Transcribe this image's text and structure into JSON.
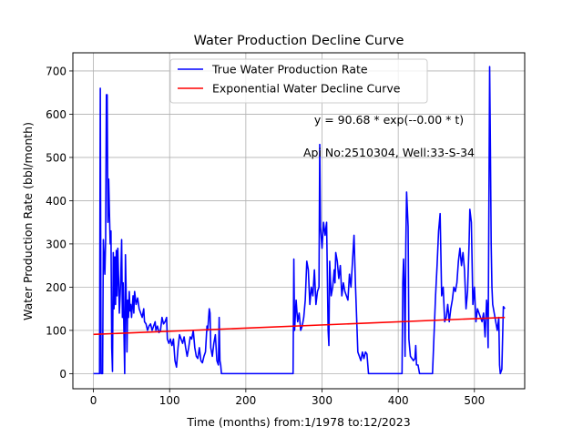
{
  "chart_data": {
    "type": "line",
    "title": "Water Production Decline Curve",
    "xlabel": "Time (months) from:1/1978 to:12/2023",
    "ylabel": "Water Production Rate (bbl/month)",
    "xlim": [
      -27,
      566
    ],
    "ylim": [
      -35,
      742
    ],
    "grid": true,
    "legend_position": "top-center",
    "x_ticks": [
      0,
      100,
      200,
      300,
      400,
      500
    ],
    "y_ticks": [
      0,
      100,
      200,
      300,
      400,
      500,
      600,
      700
    ],
    "annotations": [
      {
        "text": "y = 90.68 * exp(--0.00 * t)",
        "x": 380,
        "y": 580
      },
      {
        "text": "Api No:2510304, Well:33-S-34",
        "x": 380,
        "y": 505
      }
    ],
    "series": [
      {
        "name": "True Water Production Rate",
        "color": "#0000ff",
        "points": [
          [
            0,
            0
          ],
          [
            8,
            0
          ],
          [
            9,
            660
          ],
          [
            10,
            0
          ],
          [
            12,
            0
          ],
          [
            13,
            310
          ],
          [
            15,
            230
          ],
          [
            16,
            310
          ],
          [
            17,
            645
          ],
          [
            18,
            645
          ],
          [
            19,
            350
          ],
          [
            20,
            450
          ],
          [
            21,
            370
          ],
          [
            22,
            300
          ],
          [
            23,
            330
          ],
          [
            24,
            60
          ],
          [
            25,
            5
          ],
          [
            26,
            280
          ],
          [
            27,
            150
          ],
          [
            28,
            270
          ],
          [
            29,
            160
          ],
          [
            30,
            285
          ],
          [
            31,
            180
          ],
          [
            32,
            290
          ],
          [
            33,
            220
          ],
          [
            34,
            140
          ],
          [
            35,
            180
          ],
          [
            36,
            230
          ],
          [
            37,
            310
          ],
          [
            38,
            130
          ],
          [
            39,
            210
          ],
          [
            40,
            100
          ],
          [
            41,
            0
          ],
          [
            42,
            275
          ],
          [
            43,
            180
          ],
          [
            44,
            50
          ],
          [
            45,
            170
          ],
          [
            46,
            130
          ],
          [
            47,
            190
          ],
          [
            48,
            145
          ],
          [
            49,
            160
          ],
          [
            50,
            130
          ],
          [
            52,
            180
          ],
          [
            53,
            140
          ],
          [
            54,
            190
          ],
          [
            56,
            160
          ],
          [
            58,
            175
          ],
          [
            60,
            150
          ],
          [
            62,
            140
          ],
          [
            64,
            130
          ],
          [
            66,
            150
          ],
          [
            67,
            120
          ],
          [
            69,
            115
          ],
          [
            71,
            100
          ],
          [
            73,
            110
          ],
          [
            75,
            115
          ],
          [
            77,
            100
          ],
          [
            79,
            110
          ],
          [
            81,
            120
          ],
          [
            82,
            100
          ],
          [
            84,
            110
          ],
          [
            86,
            95
          ],
          [
            88,
            100
          ],
          [
            90,
            130
          ],
          [
            92,
            115
          ],
          [
            94,
            120
          ],
          [
            96,
            130
          ],
          [
            97,
            80
          ],
          [
            99,
            70
          ],
          [
            101,
            80
          ],
          [
            103,
            65
          ],
          [
            105,
            80
          ],
          [
            107,
            30
          ],
          [
            109,
            15
          ],
          [
            111,
            60
          ],
          [
            113,
            90
          ],
          [
            115,
            80
          ],
          [
            117,
            70
          ],
          [
            119,
            85
          ],
          [
            121,
            60
          ],
          [
            123,
            40
          ],
          [
            125,
            60
          ],
          [
            127,
            85
          ],
          [
            129,
            80
          ],
          [
            131,
            100
          ],
          [
            133,
            60
          ],
          [
            135,
            40
          ],
          [
            137,
            35
          ],
          [
            139,
            60
          ],
          [
            141,
            30
          ],
          [
            143,
            25
          ],
          [
            145,
            40
          ],
          [
            147,
            50
          ],
          [
            149,
            110
          ],
          [
            150,
            100
          ],
          [
            152,
            150
          ],
          [
            153,
            140
          ],
          [
            154,
            60
          ],
          [
            156,
            40
          ],
          [
            158,
            70
          ],
          [
            160,
            90
          ],
          [
            162,
            30
          ],
          [
            164,
            20
          ],
          [
            165,
            130
          ],
          [
            166,
            30
          ],
          [
            167,
            20
          ],
          [
            168,
            0
          ],
          [
            200,
            0
          ],
          [
            262,
            0
          ],
          [
            263,
            265
          ],
          [
            264,
            100
          ],
          [
            266,
            170
          ],
          [
            268,
            120
          ],
          [
            270,
            140
          ],
          [
            272,
            100
          ],
          [
            274,
            110
          ],
          [
            276,
            130
          ],
          [
            278,
            170
          ],
          [
            280,
            260
          ],
          [
            282,
            240
          ],
          [
            284,
            160
          ],
          [
            286,
            200
          ],
          [
            288,
            180
          ],
          [
            290,
            240
          ],
          [
            292,
            160
          ],
          [
            294,
            190
          ],
          [
            296,
            200
          ],
          [
            297,
            530
          ],
          [
            298,
            340
          ],
          [
            300,
            290
          ],
          [
            302,
            350
          ],
          [
            304,
            320
          ],
          [
            306,
            350
          ],
          [
            308,
            100
          ],
          [
            309,
            65
          ],
          [
            310,
            260
          ],
          [
            312,
            180
          ],
          [
            314,
            200
          ],
          [
            316,
            240
          ],
          [
            317,
            210
          ],
          [
            318,
            280
          ],
          [
            320,
            260
          ],
          [
            322,
            220
          ],
          [
            324,
            250
          ],
          [
            326,
            180
          ],
          [
            328,
            210
          ],
          [
            330,
            190
          ],
          [
            332,
            180
          ],
          [
            334,
            170
          ],
          [
            336,
            230
          ],
          [
            338,
            200
          ],
          [
            340,
            260
          ],
          [
            342,
            320
          ],
          [
            344,
            200
          ],
          [
            346,
            100
          ],
          [
            347,
            50
          ],
          [
            349,
            40
          ],
          [
            351,
            30
          ],
          [
            353,
            50
          ],
          [
            355,
            35
          ],
          [
            357,
            50
          ],
          [
            359,
            45
          ],
          [
            361,
            0
          ],
          [
            405,
            0
          ],
          [
            406,
            210
          ],
          [
            407,
            265
          ],
          [
            408,
            200
          ],
          [
            409,
            40
          ],
          [
            410,
            300
          ],
          [
            411,
            420
          ],
          [
            412,
            380
          ],
          [
            413,
            340
          ],
          [
            414,
            80
          ],
          [
            416,
            40
          ],
          [
            418,
            35
          ],
          [
            420,
            30
          ],
          [
            422,
            35
          ],
          [
            423,
            65
          ],
          [
            424,
            20
          ],
          [
            426,
            20
          ],
          [
            428,
            0
          ],
          [
            445,
            0
          ],
          [
            447,
            90
          ],
          [
            449,
            180
          ],
          [
            451,
            250
          ],
          [
            453,
            330
          ],
          [
            455,
            370
          ],
          [
            457,
            180
          ],
          [
            459,
            200
          ],
          [
            461,
            120
          ],
          [
            463,
            130
          ],
          [
            465,
            160
          ],
          [
            467,
            120
          ],
          [
            469,
            150
          ],
          [
            471,
            170
          ],
          [
            473,
            200
          ],
          [
            475,
            190
          ],
          [
            477,
            210
          ],
          [
            479,
            260
          ],
          [
            481,
            290
          ],
          [
            483,
            250
          ],
          [
            485,
            280
          ],
          [
            487,
            240
          ],
          [
            489,
            150
          ],
          [
            491,
            190
          ],
          [
            493,
            300
          ],
          [
            494,
            380
          ],
          [
            496,
            350
          ],
          [
            498,
            160
          ],
          [
            500,
            200
          ],
          [
            502,
            120
          ],
          [
            504,
            150
          ],
          [
            506,
            140
          ],
          [
            508,
            130
          ],
          [
            510,
            120
          ],
          [
            512,
            140
          ],
          [
            514,
            85
          ],
          [
            516,
            170
          ],
          [
            517,
            150
          ],
          [
            518,
            60
          ],
          [
            520,
            710
          ],
          [
            521,
            520
          ],
          [
            522,
            300
          ],
          [
            523,
            200
          ],
          [
            524,
            160
          ],
          [
            526,
            140
          ],
          [
            528,
            120
          ],
          [
            530,
            100
          ],
          [
            532,
            130
          ],
          [
            533,
            20
          ],
          [
            534,
            0
          ],
          [
            536,
            10
          ],
          [
            538,
            155
          ],
          [
            540,
            150
          ]
        ]
      },
      {
        "name": "Exponential Water Decline Curve",
        "color": "#ff0000",
        "points": [
          [
            0,
            90.68
          ],
          [
            540,
            130
          ]
        ]
      }
    ]
  }
}
